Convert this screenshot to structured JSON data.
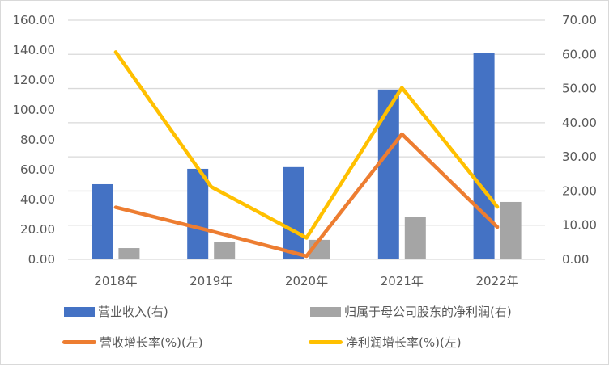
{
  "chart_data": {
    "type": "bar+line",
    "categories": [
      "2018年",
      "2019年",
      "2020年",
      "2021年",
      "2022年"
    ],
    "left_axis": {
      "range": [
        0,
        160
      ],
      "ticks": [
        "0.00",
        "20.00",
        "40.00",
        "60.00",
        "80.00",
        "100.00",
        "120.00",
        "140.00",
        "160.00"
      ]
    },
    "right_axis": {
      "range": [
        0,
        70
      ],
      "ticks": [
        "0.00",
        "10.00",
        "20.00",
        "30.00",
        "40.00",
        "50.00",
        "60.00",
        "70.00"
      ]
    },
    "grid": true,
    "legend_position": "bottom",
    "series": [
      {
        "name": "营业收入(右)",
        "kind": "bar",
        "axis": "right",
        "color": "#4472C4",
        "values": [
          22.0,
          26.5,
          27.0,
          49.7,
          60.5
        ]
      },
      {
        "name": "归属于母公司股东的净利润(右)",
        "kind": "bar",
        "axis": "right",
        "color": "#A5A5A5",
        "values": [
          3.3,
          5.0,
          5.7,
          12.3,
          16.8
        ]
      },
      {
        "name": "营收增长率(%)(左)",
        "kind": "line",
        "axis": "left",
        "color": "#ED7D31",
        "values": [
          34.8,
          18.9,
          2.2,
          83.8,
          21.6
        ]
      },
      {
        "name": "净利润增长率(%)(左)",
        "kind": "line",
        "axis": "left",
        "color": "#FFC000",
        "values": [
          138.7,
          48.6,
          14.4,
          114.8,
          35.1
        ]
      }
    ]
  }
}
